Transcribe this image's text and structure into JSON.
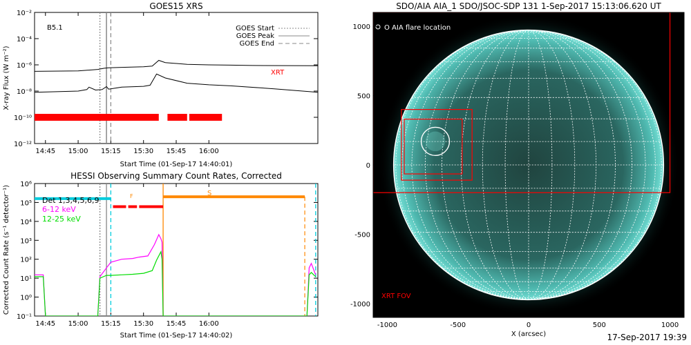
{
  "charts": [
    {
      "type": "line",
      "title": "GOES15 XRS",
      "xlabel": "Start Time (01-Sep-17 14:40:01)",
      "ylabel": "X-ray Flux (W m⁻²)",
      "annotation": "B5.1",
      "y_log": true,
      "ylim_exp": [
        -12,
        -2
      ],
      "y_tick_labels": [
        "10⁻¹²",
        "10⁻¹⁰",
        "10⁻⁸",
        "10⁻⁶",
        "10⁻⁴",
        "10⁻²"
      ],
      "xlim": [
        "14:40",
        "16:50"
      ],
      "x_ticks": [
        "14:45",
        "15:00",
        "15:15",
        "15:30",
        "15:45",
        "16:00"
      ],
      "legend": [
        {
          "label": "GOES Start",
          "style": "dotted",
          "time": "15:10"
        },
        {
          "label": "GOES Peak",
          "style": "solid",
          "time": "15:13"
        },
        {
          "label": "GOES End",
          "style": "dashed",
          "time": "15:15"
        }
      ],
      "series": [
        {
          "name": "XRT",
          "color": "#ff0000",
          "x": [
            "14:40",
            "15:00",
            "15:05",
            "15:09",
            "15:12",
            "15:14",
            "15:20",
            "15:30",
            "15:34",
            "15:37",
            "15:40",
            "15:50",
            "16:00",
            "16:10",
            "16:20",
            "16:50"
          ],
          "y": [
            3.2e-07,
            3.5e-07,
            4e-07,
            4.5e-07,
            5.5e-07,
            6e-07,
            6.5e-07,
            7.2e-07,
            8e-07,
            2.2e-06,
            1.5e-06,
            1.1e-06,
            1e-06,
            9.5e-07,
            9e-07,
            8.5e-07
          ]
        },
        {
          "name": "",
          "x": [
            "14:40",
            "15:00",
            "15:04",
            "15:05",
            "15:08",
            "15:11",
            "15:13",
            "15:14",
            "15:20",
            "15:30",
            "15:33",
            "15:36",
            "15:40",
            "15:50",
            "16:00",
            "16:10",
            "16:30",
            "16:50"
          ],
          "y": [
            8e-09,
            1e-08,
            1.3e-08,
            2e-08,
            1.2e-08,
            1.3e-08,
            2.2e-08,
            1.4e-08,
            2e-08,
            2.3e-08,
            2.8e-08,
            2e-07,
            1e-07,
            4e-08,
            3e-08,
            2.5e-08,
            1.5e-08,
            8e-09
          ]
        }
      ],
      "bars": {
        "color": "#ff0000",
        "level": 1e-10,
        "segments": [
          [
            "14:40",
            "15:37"
          ],
          [
            "15:41",
            "15:50"
          ],
          [
            "15:51",
            "16:06"
          ]
        ]
      }
    },
    {
      "type": "line",
      "title": "HESSI Observing Summary Count Rates, Corrected",
      "xlabel": "Start Time (01-Sep-17 14:40:02)",
      "ylabel": "Corrected Count Rate (s⁻¹ detector⁻¹)",
      "y_log": true,
      "ylim_exp": [
        -1,
        6
      ],
      "y_tick_labels": [
        "10⁻¹",
        "10⁰",
        "10¹",
        "10²",
        "10³",
        "10⁴",
        "10⁵",
        "10⁶"
      ],
      "xlim": [
        "14:40",
        "16:50"
      ],
      "x_ticks": [
        "14:45",
        "15:00",
        "15:15",
        "15:30",
        "15:45",
        "16:00"
      ],
      "legend": [
        {
          "label": "Det 1,3,4,5,6,9",
          "color": "#000000"
        },
        {
          "label": "6-12 keV",
          "color": "#ff00ff"
        },
        {
          "label": "12-25 keV",
          "color": "#00dd00"
        }
      ],
      "marker_F": "F",
      "marker_S": "S",
      "vlines": [
        {
          "time": "15:10",
          "style": "dotted",
          "color": "#888888"
        },
        {
          "time": "15:13",
          "style": "solid",
          "color": "#888888"
        },
        {
          "time": "15:15",
          "style": "dashed",
          "color": "#00ccdd"
        },
        {
          "time": "15:39",
          "style": "solid",
          "color": "#ff8800"
        },
        {
          "time": "16:49",
          "style": "dashed",
          "color": "#00ccdd"
        }
      ],
      "orange_dashed": "16:44",
      "flag_bars": [
        {
          "color": "#00ccdd",
          "start": "14:40",
          "end": "15:15",
          "value": 160000.0
        },
        {
          "color": "#ff8800",
          "start": "15:39",
          "end": "16:44",
          "value": 200000.0
        },
        {
          "color": "#ff0000",
          "segments": [
            [
              "15:16",
              "15:22"
            ],
            [
              "15:23",
              "15:27"
            ],
            [
              "15:28",
              "15:39"
            ]
          ],
          "value": 60000.0
        }
      ],
      "series": [
        {
          "name": "6-12 keV",
          "color": "#ff00ff",
          "x": [
            "14:40",
            "14:44",
            "14:45",
            "15:09",
            "15:10",
            "15:13",
            "15:15",
            "15:20",
            "15:25",
            "15:28",
            "15:32",
            "15:35",
            "15:37",
            "15:38",
            "15:38.5",
            "15:39",
            "16:45",
            "16:46",
            "16:47",
            "16:49"
          ],
          "y": [
            15,
            15,
            0.1,
            0.1,
            12,
            35,
            70,
            100,
            110,
            130,
            150,
            600,
            2000,
            1200,
            800,
            0.1,
            0.1,
            35,
            60,
            15
          ]
        },
        {
          "name": "12-25 keV",
          "color": "#00dd00",
          "x": [
            "14:40",
            "14:44",
            "14:45",
            "15:09",
            "15:10",
            "15:13",
            "15:15",
            "15:20",
            "15:25",
            "15:30",
            "15:34",
            "15:36",
            "15:38",
            "15:38.5",
            "15:39",
            "16:45",
            "16:46",
            "16:47",
            "16:49"
          ],
          "y": [
            12,
            12,
            0.1,
            0.1,
            10,
            14,
            14,
            15,
            16,
            18,
            25,
            90,
            250,
            100,
            0.1,
            0.1,
            15,
            20,
            12
          ]
        }
      ]
    },
    {
      "type": "scatter",
      "title": "SDO/AIA AIA_1 SDO/JSOC-SDP 131   1-Sep-2017 15:13:06.620 UT",
      "xlabel": "X (arcsec)",
      "ylabel": "",
      "xlim": [
        -1100,
        1100
      ],
      "ylim": [
        -1100,
        1100
      ],
      "x_ticks": [
        -1000,
        -500,
        0,
        500,
        1000
      ],
      "y_ticks": [
        -1000,
        -500,
        0,
        500,
        1000
      ],
      "solar_radius": 955,
      "flare_location_label": "O AIA flare location",
      "fov_label": "XRT FOV",
      "flare": {
        "x": -660,
        "y": 170,
        "r": 100
      },
      "fov_box": {
        "x0": -1100,
        "y0": -200,
        "x1": 1000,
        "y1": 1100
      },
      "inner_boxes": [
        {
          "x0": -900,
          "y0": -110,
          "x1": -400,
          "y1": 400
        },
        {
          "x0": -880,
          "y0": -65,
          "x1": -470,
          "y1": 330
        }
      ],
      "grid_step_deg": 10
    }
  ],
  "colors": {
    "disk_center": "#23524d",
    "disk_edge": "#4fb9b0",
    "corona": "#1c5a55",
    "grid": "#ffffff"
  },
  "timestamp": "17-Sep-2017 19:39"
}
